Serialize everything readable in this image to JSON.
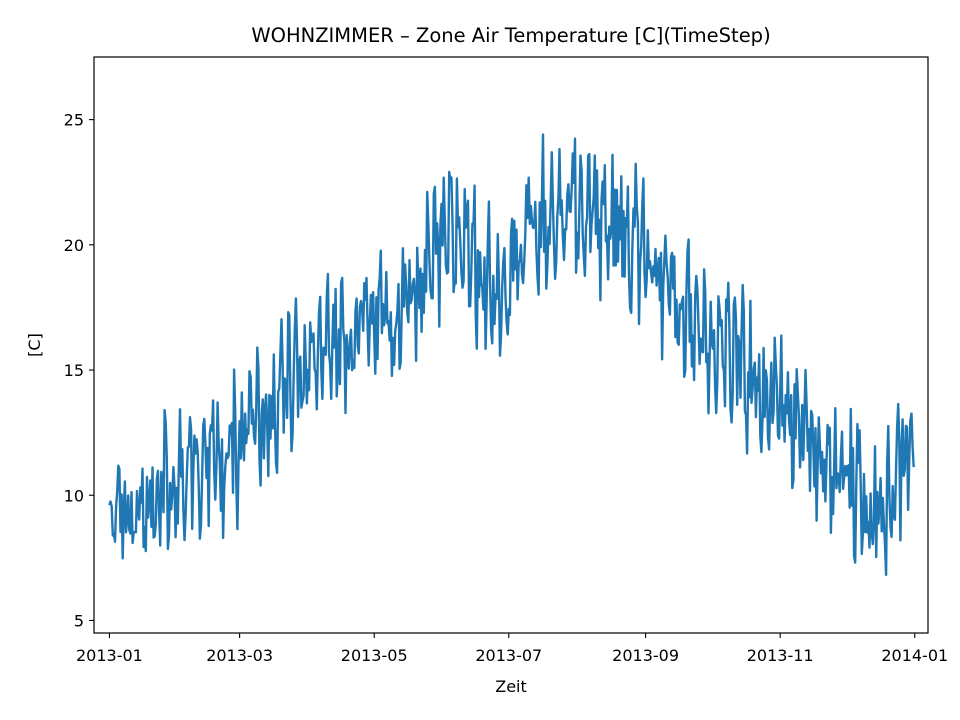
{
  "chart_data": {
    "type": "line",
    "title": "WOHNZIMMER – Zone Air Temperature [C](TimeStep)",
    "xlabel": "Zeit",
    "ylabel": "[C]",
    "xlim": [
      "2012-12-25",
      "2014-01-07"
    ],
    "ylim": [
      4.5,
      27.5
    ],
    "xticks": [
      "2013-01",
      "2013-03",
      "2013-05",
      "2013-07",
      "2013-09",
      "2013-11",
      "2014-01"
    ],
    "yticks": [
      5,
      10,
      15,
      20,
      25
    ],
    "grid": false,
    "legend": "none",
    "series": [
      {
        "color": "#1f77b4",
        "sampling": "approx. every 12 hours",
        "x": [
          "2013-01-01",
          "2013-01-08",
          "2013-01-15",
          "2013-01-22",
          "2013-01-29",
          "2013-02-05",
          "2013-02-12",
          "2013-02-19",
          "2013-02-26",
          "2013-03-05",
          "2013-03-12",
          "2013-03-19",
          "2013-03-26",
          "2013-04-02",
          "2013-04-09",
          "2013-04-16",
          "2013-04-23",
          "2013-04-30",
          "2013-05-07",
          "2013-05-14",
          "2013-05-21",
          "2013-05-28",
          "2013-06-04",
          "2013-06-11",
          "2013-06-18",
          "2013-06-25",
          "2013-07-02",
          "2013-07-09",
          "2013-07-16",
          "2013-07-23",
          "2013-07-30",
          "2013-08-06",
          "2013-08-13",
          "2013-08-20",
          "2013-08-27",
          "2013-09-03",
          "2013-09-10",
          "2013-09-17",
          "2013-09-24",
          "2013-10-01",
          "2013-10-08",
          "2013-10-15",
          "2013-10-22",
          "2013-10-29",
          "2013-11-05",
          "2013-11-12",
          "2013-11-19",
          "2013-11-26",
          "2013-12-03",
          "2013-12-10",
          "2013-12-17",
          "2013-12-24",
          "2013-12-31"
        ],
        "values": [
          8.5,
          9.5,
          9.2,
          10.2,
          10.5,
          11.5,
          11.8,
          11.2,
          11.5,
          12.5,
          13.0,
          13.8,
          14.5,
          15.2,
          15.8,
          16.3,
          16.8,
          17.0,
          17.3,
          17.0,
          18.2,
          19.2,
          20.0,
          20.5,
          19.0,
          18.2,
          19.5,
          20.5,
          20.8,
          21.0,
          21.3,
          21.5,
          21.0,
          20.8,
          20.2,
          19.5,
          18.5,
          17.5,
          17.0,
          16.5,
          15.8,
          15.0,
          14.5,
          13.8,
          13.2,
          12.5,
          11.8,
          11.2,
          10.5,
          9.5,
          9.0,
          11.0,
          12.0
        ],
        "amplitude": [
          2.0,
          2.5,
          2.5,
          2.8,
          2.8,
          3.0,
          3.0,
          3.0,
          3.0,
          2.8,
          2.8,
          2.8,
          2.8,
          2.8,
          2.8,
          2.8,
          2.8,
          2.8,
          2.8,
          2.8,
          2.8,
          2.8,
          3.0,
          3.2,
          2.8,
          2.5,
          2.8,
          3.0,
          3.0,
          3.0,
          3.2,
          3.0,
          2.8,
          2.8,
          2.8,
          2.8,
          2.8,
          2.8,
          2.8,
          2.8,
          2.8,
          2.8,
          2.8,
          2.8,
          2.5,
          2.5,
          2.5,
          2.5,
          2.5,
          2.8,
          2.8,
          2.8,
          2.5
        ]
      }
    ]
  }
}
